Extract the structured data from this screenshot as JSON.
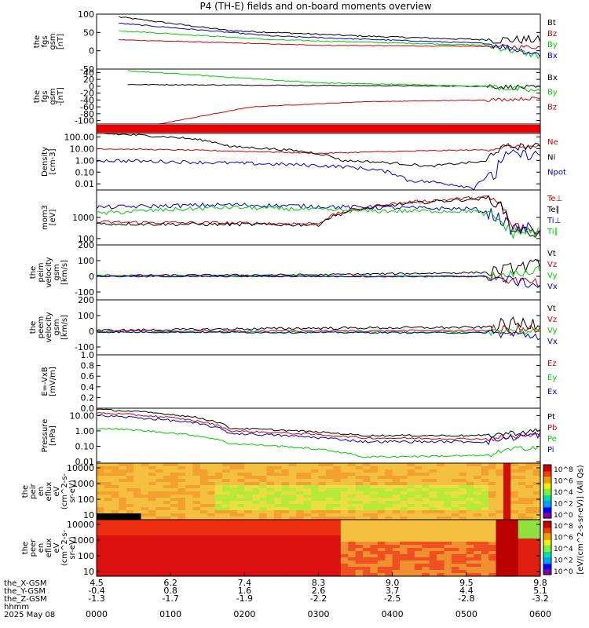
{
  "title": "P4 (TH-E) fields and on-board moments overview",
  "chart_data": {
    "type": "line",
    "time_axis": {
      "ticks": [
        "0000",
        "0100",
        "0200",
        "0300",
        "0400",
        "0500",
        "0600"
      ],
      "rows": [
        {
          "label": "the_X-GSM",
          "values": [
            "4.5",
            "6.2",
            "7.4",
            "8.3",
            "9.0",
            "9.5",
            "9.8"
          ]
        },
        {
          "label": "the_Y-GSM",
          "values": [
            "-0.4",
            "0.8",
            "1.6",
            "2.6",
            "3.7",
            "4.4",
            "5.1"
          ]
        },
        {
          "label": "the_Z-GSM",
          "values": [
            "-1.3",
            "-1.7",
            "-1.9",
            "-2.2",
            "-2.5",
            "-2.8",
            "-3.2"
          ]
        },
        {
          "label": "hhmm",
          "values": []
        },
        {
          "label": "2025 May 08",
          "values": []
        }
      ]
    },
    "panels": [
      {
        "ylabel": [
          "the",
          "fgs",
          "gsm",
          "[nT]"
        ],
        "ylim": [
          -50,
          100
        ],
        "ticks": [
          "100",
          "50",
          "0",
          "-50"
        ],
        "series": [
          {
            "name": "Bt",
            "color": "#000000"
          },
          {
            "name": "Bz",
            "color": "#cc0000"
          },
          {
            "name": "By",
            "color": "#00cc00"
          },
          {
            "name": "Bx",
            "color": "#0000cc"
          }
        ]
      },
      {
        "ylabel": [
          "the",
          "fgs",
          "gsm",
          "-[nT]"
        ],
        "ylim": [
          -110,
          50
        ],
        "ticks": [
          "40",
          "20",
          "0",
          "-20",
          "-40",
          "-60",
          "-80",
          "-100"
        ],
        "series": [
          {
            "name": "Bx",
            "color": "#000000"
          },
          {
            "name": "By",
            "color": "#00cc00"
          },
          {
            "name": "Bz",
            "color": "#cc0000"
          }
        ]
      },
      {
        "ylabel": [],
        "ticks": [],
        "series": []
      },
      {
        "ylabel": [
          "Density",
          "[cm-3]"
        ],
        "ylim": [
          0.003,
          200
        ],
        "log": true,
        "ticks": [
          "100.00",
          "10.00",
          "1.00",
          "0.10",
          "0.01"
        ],
        "series": [
          {
            "name": "Ne",
            "color": "#cc0000"
          },
          {
            "name": "Ni",
            "color": "#000000"
          },
          {
            "name": "Npot",
            "color": "#0000cc"
          }
        ]
      },
      {
        "ylabel": [
          "mom3",
          "[eV]"
        ],
        "ylim": [
          50,
          20000
        ],
        "log": true,
        "ticks": [
          "1000",
          "100"
        ],
        "series": [
          {
            "name": "Te⊥",
            "color": "#cc0000"
          },
          {
            "name": "Te∥",
            "color": "#000000"
          },
          {
            "name": "Ti⊥",
            "color": "#0000cc"
          },
          {
            "name": "Ti∥",
            "color": "#00cc00"
          }
        ]
      },
      {
        "ylabel": [
          "the",
          "peim",
          "velocity",
          "gsm",
          "[km/s]"
        ],
        "ylim": [
          -150,
          200
        ],
        "ticks": [
          "200",
          "100",
          "0",
          "-100"
        ],
        "series": [
          {
            "name": "Vt",
            "color": "#000000"
          },
          {
            "name": "Vz",
            "color": "#cc0000"
          },
          {
            "name": "Vy",
            "color": "#00cc00"
          },
          {
            "name": "Vx",
            "color": "#0000cc"
          }
        ]
      },
      {
        "ylabel": [
          "the",
          "peem",
          "velocity",
          "gsm",
          "[km/s]"
        ],
        "ylim": [
          -150,
          200
        ],
        "ticks": [
          "200",
          "100",
          "0",
          "-100"
        ],
        "series": [
          {
            "name": "Vt",
            "color": "#000000"
          },
          {
            "name": "Vz",
            "color": "#cc0000"
          },
          {
            "name": "Vy",
            "color": "#00cc00"
          },
          {
            "name": "Vx",
            "color": "#0000cc"
          }
        ]
      },
      {
        "ylabel": [
          "E=-VxB",
          "[mV/m]"
        ],
        "ylim": [
          0,
          1
        ],
        "ticks": [
          "1.0",
          "0.8",
          "0.6",
          "0.4",
          "0.2",
          "0.0"
        ],
        "series": [
          {
            "name": "Ez",
            "color": "#cc0000"
          },
          {
            "name": "Ey",
            "color": "#00cc00"
          },
          {
            "name": "Ex",
            "color": "#0000cc"
          }
        ]
      },
      {
        "ylabel": [
          "Pressure",
          "[nPa]"
        ],
        "ylim": [
          0.008,
          30
        ],
        "log": true,
        "ticks": [
          "10.00",
          "1.00",
          "0.10",
          "0.01"
        ],
        "series": [
          {
            "name": "Pt",
            "color": "#000000"
          },
          {
            "name": "Pb",
            "color": "#cc0000"
          },
          {
            "name": "Pe",
            "color": "#00cc00"
          },
          {
            "name": "Pi",
            "color": "#0000cc"
          }
        ]
      },
      {
        "ylabel": [
          "the",
          "peir",
          "en",
          "eflux",
          "eV",
          "(cm^2-s-",
          "sr-eV)"
        ],
        "ylim": [
          5,
          20000
        ],
        "log": true,
        "ticks": [
          "10000",
          "1000",
          "100",
          "10"
        ],
        "series": []
      },
      {
        "ylabel": [
          "the",
          "peer",
          "en",
          "eflux",
          "eV",
          "(cm^2-s-",
          "sr-eV)"
        ],
        "ylim": [
          5,
          20000
        ],
        "log": true,
        "ticks": [
          "10000",
          "1000",
          "100",
          "10"
        ],
        "series": []
      }
    ],
    "colorbars": [
      {
        "ticks": [
          "10^8",
          "10^6",
          "10^4",
          "10^2",
          "10^0"
        ]
      },
      {
        "ticks": [
          "10^8",
          "10^6",
          "10^4",
          "10^2",
          "10^0"
        ]
      }
    ],
    "colorbar_label": "[eV/(cm^2-s-sr-eV)] (All Qs)"
  }
}
